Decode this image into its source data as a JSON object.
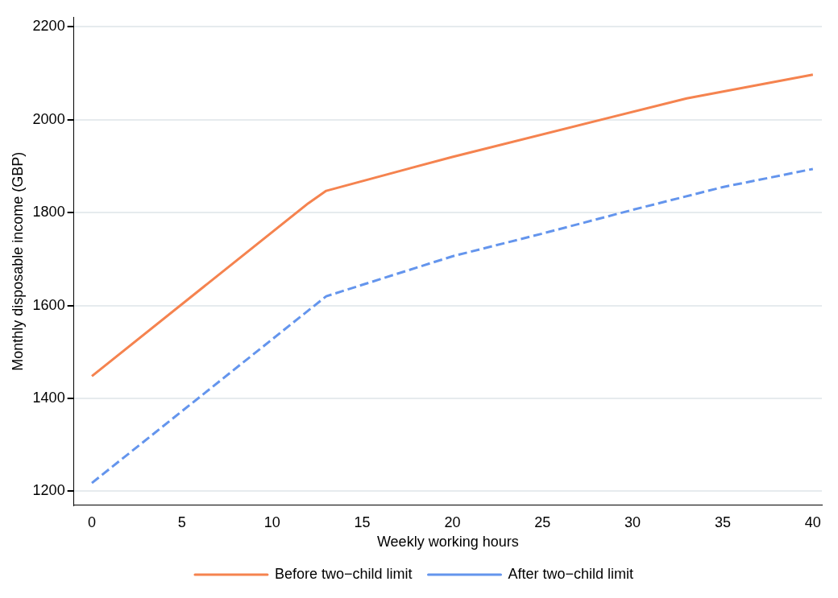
{
  "chart_data": {
    "type": "line",
    "xlabel": "Weekly working hours",
    "ylabel": "Monthly disposable income (GBP)",
    "xlim": [
      -1,
      40.5
    ],
    "xticks": [
      0,
      5,
      10,
      15,
      20,
      25,
      30,
      35,
      40
    ],
    "ylim": [
      1170,
      2220
    ],
    "yticks": [
      1200,
      1400,
      1600,
      1800,
      2000,
      2200
    ],
    "grid": "y",
    "legend": "bottom",
    "marker": "none",
    "series": [
      {
        "name": "Before two−child limit",
        "color": "#f5834f",
        "line_style": "solid",
        "x": [
          0,
          12,
          13,
          20,
          33,
          40
        ],
        "values": [
          1448,
          1820,
          1847,
          1920,
          2046,
          2097
        ]
      },
      {
        "name": "After two−child limit",
        "color": "#6495ed",
        "line_style": "dashed",
        "x": [
          0,
          13,
          20,
          25,
          30,
          35,
          40
        ],
        "values": [
          1218,
          1620,
          1706,
          1755,
          1806,
          1855,
          1894
        ]
      }
    ]
  }
}
